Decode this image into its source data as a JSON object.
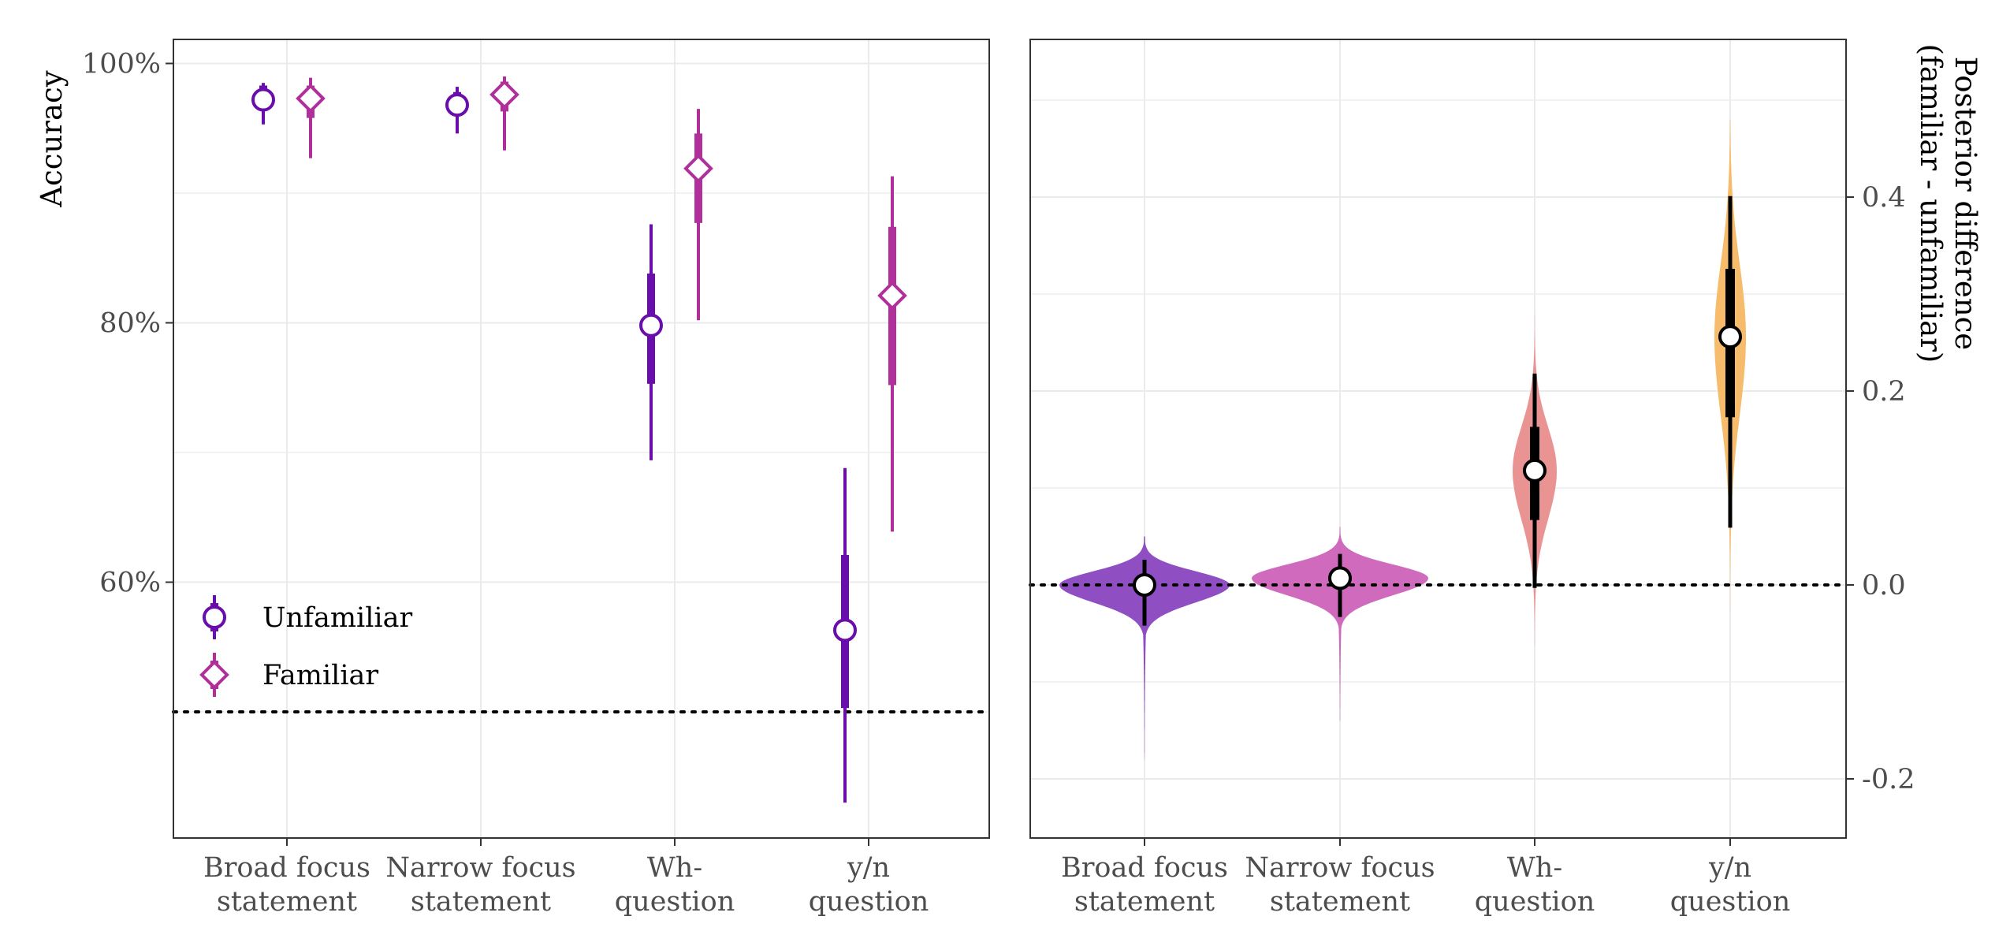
{
  "chart_data": [
    {
      "type": "scatter",
      "panel": "left",
      "title": "",
      "xlabel": "",
      "ylabel": "Accuracy",
      "categories": [
        "Broad focus\nstatement",
        "Narrow focus\nstatement",
        "Wh-\nquestion",
        "y/n\nquestion"
      ],
      "ylim": [
        44,
        100
      ],
      "yticks": [
        60,
        80,
        100
      ],
      "ytick_labels": [
        "60%",
        "80%",
        "100%"
      ],
      "reference_line": 50,
      "legend": {
        "position": "bottom-left",
        "entries": [
          "Unfamiliar",
          "Familiar"
        ]
      },
      "series": [
        {
          "name": "Unfamiliar",
          "marker": "circle",
          "color": "#6A0DAD",
          "estimate": [
            97.2,
            96.8,
            79.8,
            56.3
          ],
          "inner_interval": [
            [
              96.5,
              98.3
            ],
            [
              96.0,
              97.8
            ],
            [
              75.3,
              83.8
            ],
            [
              50.3,
              62.1
            ]
          ],
          "outer_interval": [
            [
              95.3,
              98.5
            ],
            [
              94.6,
              98.2
            ],
            [
              69.4,
              87.6
            ],
            [
              43.0,
              68.8
            ]
          ]
        },
        {
          "name": "Familiar",
          "marker": "diamond",
          "color": "#B02F9B",
          "estimate": [
            97.3,
            97.6,
            91.9,
            82.1
          ],
          "inner_interval": [
            [
              95.8,
              98.3
            ],
            [
              96.3,
              98.6
            ],
            [
              87.7,
              94.6
            ],
            [
              75.2,
              87.4
            ]
          ],
          "outer_interval": [
            [
              92.7,
              98.9
            ],
            [
              93.3,
              99.0
            ],
            [
              80.2,
              96.5
            ],
            [
              63.9,
              91.3
            ]
          ]
        }
      ]
    },
    {
      "type": "violin",
      "panel": "right",
      "title": "",
      "xlabel": "",
      "ylabel": "Posterior difference\n(familiar - unfamiliar)",
      "categories": [
        "Broad focus\nstatement",
        "Narrow focus\nstatement",
        "Wh-\nquestion",
        "y/n\nquestion"
      ],
      "ylim": [
        -0.25,
        0.5
      ],
      "yticks": [
        -0.2,
        0.0,
        0.2,
        0.4
      ],
      "ytick_labels": [
        "-0.2",
        "0.0",
        "0.2",
        "0.4"
      ],
      "reference_line": 0.0,
      "colors": [
        "#8A44C0",
        "#CC62B8",
        "#E88D8D",
        "#F7B863"
      ],
      "estimate": [
        0.0,
        0.007,
        0.118,
        0.256
      ],
      "inner_interval": [
        [
          -0.008,
          0.008
        ],
        [
          -0.003,
          0.016
        ],
        [
          0.067,
          0.163
        ],
        [
          0.173,
          0.326
        ]
      ],
      "outer_interval": [
        [
          -0.042,
          0.026
        ],
        [
          -0.033,
          0.032
        ],
        [
          -0.003,
          0.218
        ],
        [
          0.059,
          0.401
        ]
      ],
      "density_range": [
        [
          -0.18,
          0.05
        ],
        [
          -0.14,
          0.06
        ],
        [
          -0.1,
          0.29
        ],
        [
          -0.07,
          0.48
        ]
      ]
    }
  ]
}
